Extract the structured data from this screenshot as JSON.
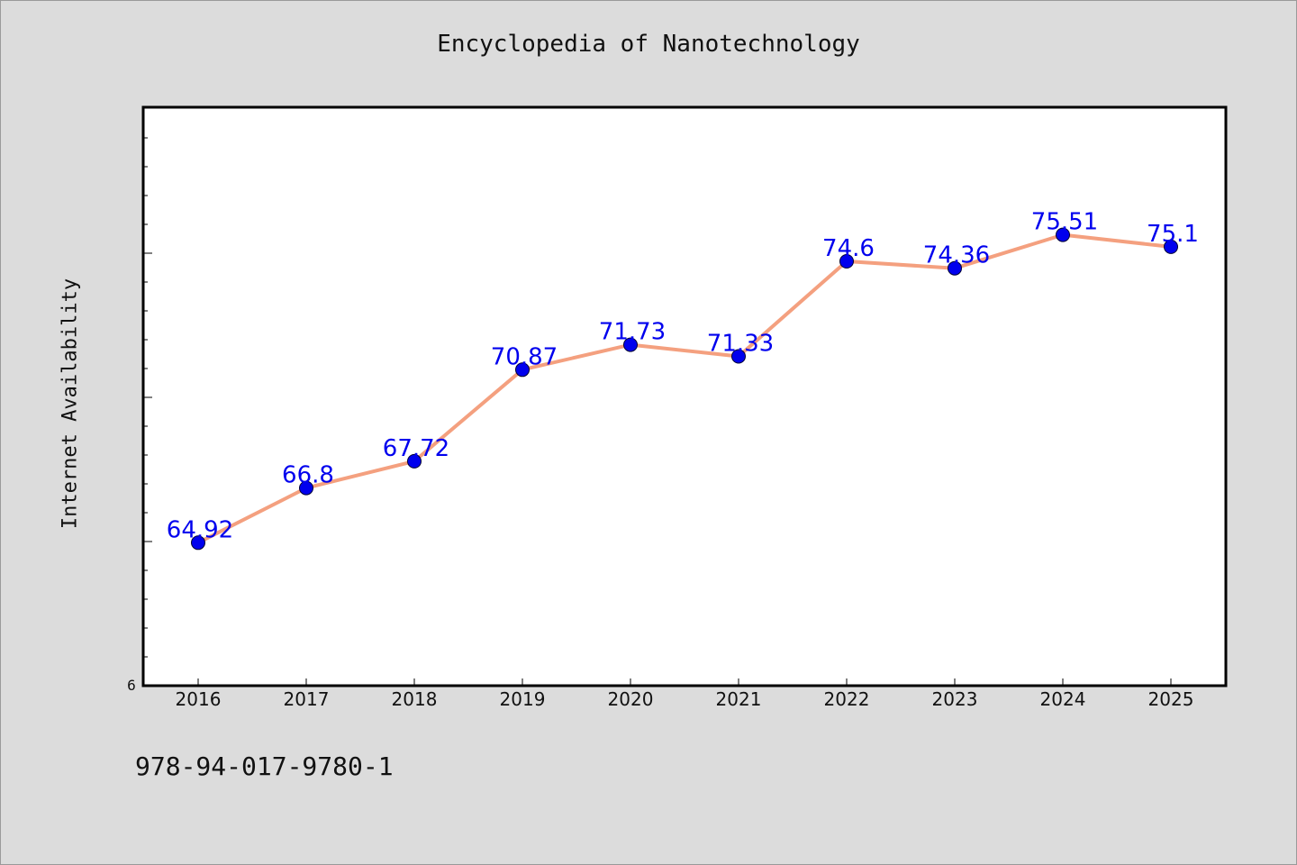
{
  "chart_data": {
    "type": "line",
    "title": "Encyclopedia of Nanotechnology",
    "ylabel": "Internet Availability",
    "xlabel": "",
    "categories": [
      "2016",
      "2017",
      "2018",
      "2019",
      "2020",
      "2021",
      "2022",
      "2023",
      "2024",
      "2025"
    ],
    "series": [
      {
        "values": [
          64.92,
          66.8,
          67.72,
          70.87,
          71.73,
          71.33,
          74.6,
          74.36,
          75.51,
          75.1
        ],
        "data_labels": [
          "64.92",
          "66.8",
          "67.72",
          "70.87",
          "71.73",
          "71.33",
          "74.6",
          "74.36",
          "75.51",
          "75.1"
        ]
      }
    ],
    "y_tick_label": "6",
    "y_axis_max": 79.9,
    "y_axis_min": 60,
    "grid": false,
    "colors": {
      "line": "#f4a07f",
      "marker": "#0000ee",
      "data_label": "#0000ee",
      "plot_background": "#ffffff",
      "page_background": "#dcdcdc"
    }
  },
  "footer_text": "978-94-017-9780-1"
}
